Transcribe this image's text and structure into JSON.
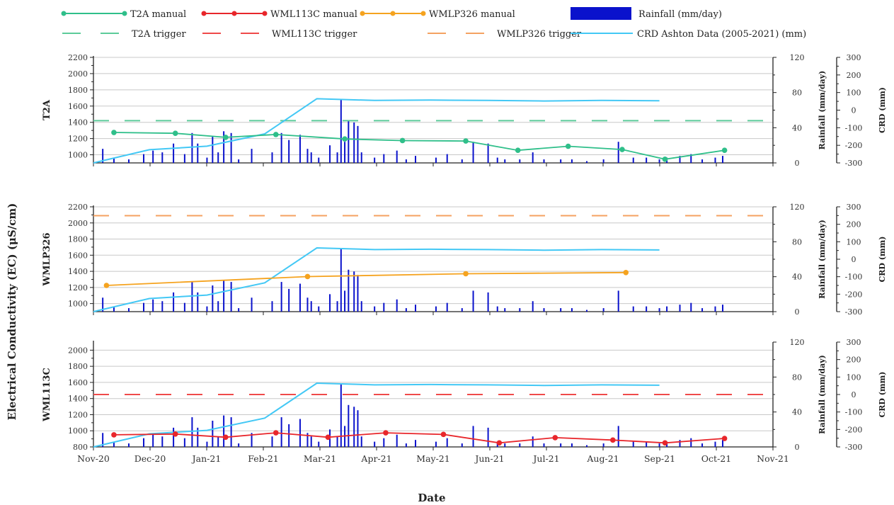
{
  "chart_data": {
    "type": "line",
    "xlabel": "Date",
    "ylabel": "Electrical Conductivity (EC) (μS/cm)",
    "x_ticks": [
      "Nov-20",
      "Dec-20",
      "Jan-21",
      "Feb-21",
      "Mar-21",
      "Apr-21",
      "May-21",
      "Jun-21",
      "Jul-21",
      "Aug-21",
      "Sep-21",
      "Oct-21",
      "Nov-21"
    ],
    "xlim": [
      "2020-11-01",
      "2021-11-01"
    ],
    "rain_axis_label": "Rainfall (mm/day)",
    "crd_axis_label": "CRD (mm)",
    "legend": {
      "placement": "top",
      "entries": [
        {
          "label": "T2A manual",
          "color": "#2fbf8a",
          "style": "line-marker"
        },
        {
          "label": "WML113C manual",
          "color": "#e8262b",
          "style": "line-marker"
        },
        {
          "label": "WMLP326 manual",
          "color": "#f5a31f",
          "style": "line-marker"
        },
        {
          "label": "Rainfall (mm/day)",
          "color": "#0a12cc",
          "style": "bar"
        },
        {
          "label": "T2A trigger",
          "color": "#5ccb9a",
          "style": "dash"
        },
        {
          "label": "WML113C trigger",
          "color": "#ef4a4a",
          "style": "dash"
        },
        {
          "label": "WMLP326 trigger",
          "color": "#f4a261",
          "style": "dash"
        },
        {
          "label": "CRD Ashton Data (2005-2021) (mm)",
          "color": "#43c8f5",
          "style": "line"
        }
      ]
    },
    "colors": {
      "t2a": "#2fbf8a",
      "wml113c": "#e8262b",
      "wmlp326": "#f5a31f",
      "rain": "#0a12cc",
      "crd": "#43c8f5",
      "t2a_trigger": "#5ccb9a",
      "wml113c_trigger": "#ef4a4a",
      "wmlp326_trigger": "#f4a261"
    },
    "crd_series": {
      "name": "CRD Ashton Data (2005-2021) (mm)",
      "x": [
        "2020-11-01",
        "2020-12-01",
        "2021-01-01",
        "2021-02-01",
        "2021-03-01",
        "2021-04-01",
        "2021-05-01",
        "2021-06-01",
        "2021-07-01",
        "2021-08-01",
        "2021-09-01"
      ],
      "y": [
        -300,
        -225,
        -205,
        -135,
        65,
        55,
        57,
        55,
        52,
        55,
        53
      ]
    },
    "rainfall": {
      "name": "Rainfall (mm/day)",
      "x": [
        "2020-11-06",
        "2020-11-12",
        "2020-11-20",
        "2020-11-28",
        "2020-12-03",
        "2020-12-08",
        "2020-12-14",
        "2020-12-20",
        "2020-12-24",
        "2020-12-27",
        "2021-01-01",
        "2021-01-04",
        "2021-01-07",
        "2021-01-10",
        "2021-01-14",
        "2021-01-18",
        "2021-01-25",
        "2021-02-05",
        "2021-02-10",
        "2021-02-14",
        "2021-02-20",
        "2021-02-24",
        "2021-02-26",
        "2021-03-02",
        "2021-03-08",
        "2021-03-12",
        "2021-03-14",
        "2021-03-16",
        "2021-03-18",
        "2021-03-21",
        "2021-03-23",
        "2021-03-25",
        "2021-04-01",
        "2021-04-06",
        "2021-04-13",
        "2021-04-18",
        "2021-04-23",
        "2021-05-04",
        "2021-05-10",
        "2021-05-18",
        "2021-05-24",
        "2021-06-01",
        "2021-06-06",
        "2021-06-10",
        "2021-06-18",
        "2021-06-25",
        "2021-07-01",
        "2021-07-10",
        "2021-07-16",
        "2021-07-24",
        "2021-08-02",
        "2021-08-10",
        "2021-08-18",
        "2021-08-25",
        "2021-09-01",
        "2021-09-05",
        "2021-09-12",
        "2021-09-18",
        "2021-09-24",
        "2021-10-01",
        "2021-10-05"
      ],
      "y": [
        16,
        6,
        4,
        10,
        14,
        12,
        22,
        10,
        34,
        22,
        6,
        30,
        12,
        36,
        34,
        4,
        16,
        12,
        34,
        26,
        32,
        16,
        12,
        6,
        20,
        12,
        72,
        24,
        48,
        46,
        42,
        12,
        6,
        10,
        14,
        4,
        8,
        6,
        10,
        4,
        24,
        22,
        6,
        4,
        4,
        12,
        4,
        4,
        4,
        2,
        4,
        24,
        6,
        6,
        4,
        6,
        8,
        10,
        4,
        6,
        8
      ]
    },
    "panels": [
      {
        "title": "T2A",
        "ylim": [
          900,
          2200
        ],
        "yticks": [
          1000,
          1200,
          1400,
          1600,
          1800,
          2000,
          2200
        ],
        "rain_ylim": [
          0,
          120
        ],
        "rain_ticks": [
          0,
          40,
          80,
          120
        ],
        "crd_ylim": [
          -300,
          300
        ],
        "crd_ticks": [
          -300,
          -200,
          -100,
          0,
          100,
          200,
          300
        ],
        "trigger": {
          "name": "T2A trigger",
          "value": 1420,
          "color": "#5ccb9a"
        },
        "series": {
          "name": "T2A manual",
          "color": "#2fbf8a",
          "x": [
            "2020-11-12",
            "2020-12-15",
            "2021-01-11",
            "2021-02-07",
            "2021-03-16",
            "2021-04-16",
            "2021-05-20",
            "2021-06-17",
            "2021-07-14",
            "2021-08-12",
            "2021-09-04",
            "2021-10-06"
          ],
          "y": [
            1275,
            1265,
            1215,
            1250,
            1195,
            1175,
            1170,
            1055,
            1105,
            1065,
            945,
            1055
          ]
        }
      },
      {
        "title": "WMLP326",
        "ylim": [
          900,
          2200
        ],
        "yticks": [
          1000,
          1200,
          1400,
          1600,
          1800,
          2000,
          2200
        ],
        "rain_ylim": [
          0,
          120
        ],
        "rain_ticks": [
          0,
          40,
          80,
          120
        ],
        "crd_ylim": [
          -300,
          300
        ],
        "crd_ticks": [
          -300,
          -200,
          -100,
          0,
          100,
          200,
          300
        ],
        "trigger": {
          "name": "WMLP326 trigger",
          "value": 2090,
          "color": "#f4a261"
        },
        "series": {
          "name": "WMLP326 manual",
          "color": "#f5a31f",
          "x": [
            "2020-11-08",
            "2021-02-24",
            "2021-05-20",
            "2021-08-14"
          ],
          "y": [
            1225,
            1335,
            1370,
            1385
          ]
        }
      },
      {
        "title": "WML113C",
        "ylim": [
          800,
          2100
        ],
        "yticks": [
          800,
          1000,
          1200,
          1400,
          1600,
          1800,
          2000
        ],
        "rain_ylim": [
          0,
          120
        ],
        "rain_ticks": [
          0,
          40,
          80,
          120
        ],
        "crd_ylim": [
          -300,
          300
        ],
        "crd_ticks": [
          -300,
          -200,
          -100,
          0,
          100,
          200,
          300
        ],
        "trigger": {
          "name": "WML113C trigger",
          "value": 1450,
          "color": "#ef4a4a"
        },
        "series": {
          "name": "WML113C manual",
          "color": "#e8262b",
          "x": [
            "2020-11-12",
            "2020-12-15",
            "2021-01-11",
            "2021-02-07",
            "2021-03-07",
            "2021-04-07",
            "2021-05-08",
            "2021-06-07",
            "2021-07-07",
            "2021-08-07",
            "2021-09-04",
            "2021-10-06"
          ],
          "y": [
            950,
            960,
            920,
            975,
            920,
            975,
            955,
            850,
            915,
            885,
            850,
            905
          ]
        }
      }
    ]
  }
}
